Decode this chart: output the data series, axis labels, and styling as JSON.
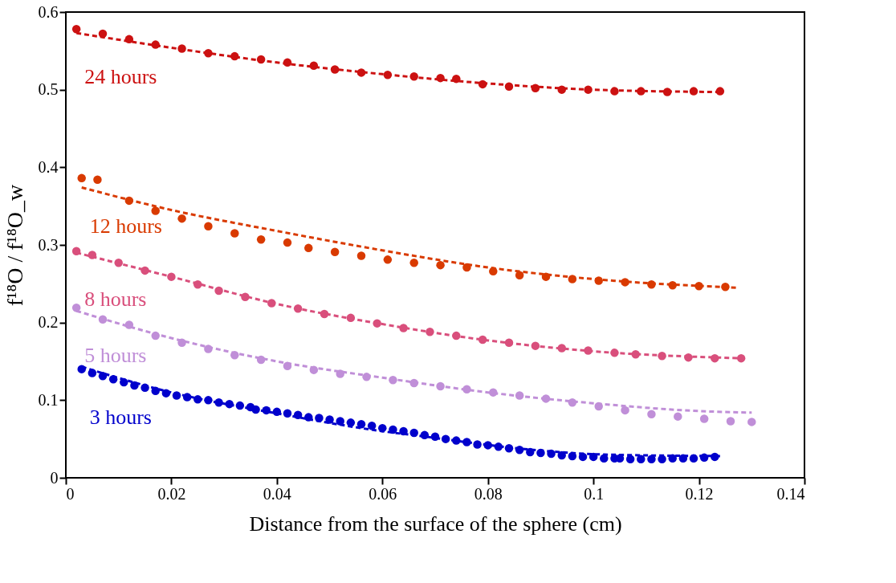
{
  "chart_data": {
    "type": "scatter",
    "xlabel": "Distance from the surface of the sphere (cm)",
    "ylabel": "f¹⁸O / f¹⁸O_w",
    "xlim": [
      0,
      0.14
    ],
    "xticks": [
      0,
      0.02,
      0.04,
      0.06,
      0.08,
      0.1,
      0.12,
      0.14
    ],
    "ylim": [
      0,
      0.6
    ],
    "yticks": [
      0,
      0.1,
      0.2,
      0.3,
      0.4,
      0.5,
      0.6
    ],
    "grid": false,
    "series": [
      {
        "name": "24 hours",
        "type": "scatter",
        "marker": "circle",
        "color": "#cc1111",
        "x": [
          0.002,
          0.007,
          0.012,
          0.017,
          0.022,
          0.027,
          0.032,
          0.037,
          0.042,
          0.047,
          0.051,
          0.056,
          0.061,
          0.066,
          0.071,
          0.074,
          0.079,
          0.084,
          0.089,
          0.094,
          0.099,
          0.104,
          0.109,
          0.114,
          0.119,
          0.124
        ],
        "values": [
          0.578,
          0.572,
          0.565,
          0.558,
          0.553,
          0.547,
          0.543,
          0.539,
          0.535,
          0.531,
          0.526,
          0.522,
          0.519,
          0.517,
          0.515,
          0.514,
          0.507,
          0.504,
          0.502,
          0.5,
          0.5,
          0.498,
          0.498,
          0.497,
          0.498,
          0.498
        ]
      },
      {
        "type": "line",
        "line_style": "dashed",
        "marker": "none",
        "color": "#cc1111",
        "x": [
          0.002,
          0.02,
          0.04,
          0.06,
          0.08,
          0.1,
          0.124
        ],
        "values": [
          0.573,
          0.554,
          0.535,
          0.52,
          0.508,
          0.5,
          0.497
        ]
      },
      {
        "name": "12 hours",
        "type": "scatter",
        "marker": "circle",
        "color": "#d93a00",
        "x": [
          0.003,
          0.006,
          0.012,
          0.017,
          0.022,
          0.027,
          0.032,
          0.037,
          0.042,
          0.046,
          0.051,
          0.056,
          0.061,
          0.066,
          0.071,
          0.076,
          0.081,
          0.086,
          0.091,
          0.096,
          0.101,
          0.106,
          0.111,
          0.115,
          0.12,
          0.125
        ],
        "values": [
          0.386,
          0.384,
          0.357,
          0.344,
          0.334,
          0.324,
          0.315,
          0.307,
          0.303,
          0.296,
          0.291,
          0.286,
          0.281,
          0.277,
          0.274,
          0.271,
          0.266,
          0.261,
          0.259,
          0.256,
          0.254,
          0.252,
          0.249,
          0.248,
          0.247,
          0.246
        ]
      },
      {
        "type": "line",
        "line_style": "dashed",
        "marker": "none",
        "color": "#d93a00",
        "x": [
          0.003,
          0.02,
          0.04,
          0.06,
          0.08,
          0.1,
          0.127
        ],
        "values": [
          0.374,
          0.345,
          0.318,
          0.293,
          0.271,
          0.256,
          0.245
        ]
      },
      {
        "name": "8 hours",
        "type": "scatter",
        "marker": "circle",
        "color": "#d94f7c",
        "x": [
          0.002,
          0.005,
          0.01,
          0.015,
          0.02,
          0.025,
          0.029,
          0.034,
          0.039,
          0.044,
          0.049,
          0.054,
          0.059,
          0.064,
          0.069,
          0.074,
          0.079,
          0.084,
          0.089,
          0.094,
          0.099,
          0.104,
          0.108,
          0.113,
          0.118,
          0.123,
          0.128
        ],
        "values": [
          0.292,
          0.287,
          0.277,
          0.267,
          0.259,
          0.249,
          0.241,
          0.233,
          0.225,
          0.218,
          0.211,
          0.206,
          0.199,
          0.193,
          0.188,
          0.183,
          0.178,
          0.174,
          0.17,
          0.167,
          0.164,
          0.161,
          0.159,
          0.157,
          0.155,
          0.154,
          0.154
        ]
      },
      {
        "type": "line",
        "line_style": "dashed",
        "marker": "none",
        "color": "#d94f7c",
        "x": [
          0.002,
          0.02,
          0.04,
          0.06,
          0.08,
          0.1,
          0.128
        ],
        "values": [
          0.29,
          0.259,
          0.224,
          0.198,
          0.177,
          0.163,
          0.154
        ]
      },
      {
        "name": "5 hours",
        "type": "scatter",
        "marker": "circle",
        "color": "#c08fd8",
        "x": [
          0.002,
          0.007,
          0.012,
          0.017,
          0.022,
          0.027,
          0.032,
          0.037,
          0.042,
          0.047,
          0.052,
          0.057,
          0.062,
          0.066,
          0.071,
          0.076,
          0.081,
          0.086,
          0.091,
          0.096,
          0.101,
          0.106,
          0.111,
          0.116,
          0.121,
          0.126,
          0.13
        ],
        "values": [
          0.219,
          0.204,
          0.197,
          0.183,
          0.174,
          0.166,
          0.158,
          0.152,
          0.144,
          0.139,
          0.134,
          0.13,
          0.126,
          0.122,
          0.118,
          0.114,
          0.11,
          0.106,
          0.102,
          0.097,
          0.092,
          0.087,
          0.082,
          0.079,
          0.076,
          0.073,
          0.072
        ]
      },
      {
        "type": "line",
        "line_style": "dashed",
        "marker": "none",
        "color": "#c08fd8",
        "x": [
          0.002,
          0.02,
          0.04,
          0.06,
          0.08,
          0.1,
          0.12,
          0.13
        ],
        "values": [
          0.215,
          0.18,
          0.15,
          0.129,
          0.11,
          0.096,
          0.086,
          0.084
        ]
      },
      {
        "name": "3 hours",
        "type": "scatter",
        "marker": "circle",
        "color": "#0000cc",
        "x": [
          0.003,
          0.005,
          0.007,
          0.009,
          0.011,
          0.013,
          0.015,
          0.017,
          0.019,
          0.021,
          0.023,
          0.025,
          0.027,
          0.029,
          0.031,
          0.033,
          0.035,
          0.036,
          0.038,
          0.04,
          0.042,
          0.044,
          0.046,
          0.048,
          0.05,
          0.052,
          0.054,
          0.056,
          0.058,
          0.06,
          0.062,
          0.064,
          0.066,
          0.068,
          0.07,
          0.072,
          0.074,
          0.076,
          0.078,
          0.08,
          0.082,
          0.084,
          0.086,
          0.088,
          0.09,
          0.092,
          0.094,
          0.096,
          0.098,
          0.1,
          0.102,
          0.104,
          0.105,
          0.107,
          0.109,
          0.111,
          0.113,
          0.115,
          0.117,
          0.119,
          0.121,
          0.123
        ],
        "values": [
          0.14,
          0.135,
          0.131,
          0.127,
          0.123,
          0.119,
          0.116,
          0.112,
          0.109,
          0.106,
          0.104,
          0.101,
          0.1,
          0.097,
          0.095,
          0.093,
          0.091,
          0.088,
          0.087,
          0.085,
          0.083,
          0.081,
          0.078,
          0.077,
          0.075,
          0.073,
          0.071,
          0.069,
          0.067,
          0.064,
          0.062,
          0.06,
          0.058,
          0.055,
          0.053,
          0.05,
          0.048,
          0.046,
          0.043,
          0.042,
          0.04,
          0.038,
          0.036,
          0.033,
          0.032,
          0.031,
          0.029,
          0.028,
          0.027,
          0.027,
          0.025,
          0.025,
          0.025,
          0.024,
          0.024,
          0.024,
          0.024,
          0.025,
          0.025,
          0.025,
          0.026,
          0.027
        ]
      },
      {
        "type": "line",
        "line_style": "dashed",
        "marker": "none",
        "color": "#0000cc",
        "x": [
          0.003,
          0.02,
          0.04,
          0.06,
          0.067,
          0.087,
          0.102,
          0.124
        ],
        "values": [
          0.143,
          0.11,
          0.083,
          0.06,
          0.054,
          0.037,
          0.03,
          0.028
        ]
      }
    ]
  }
}
